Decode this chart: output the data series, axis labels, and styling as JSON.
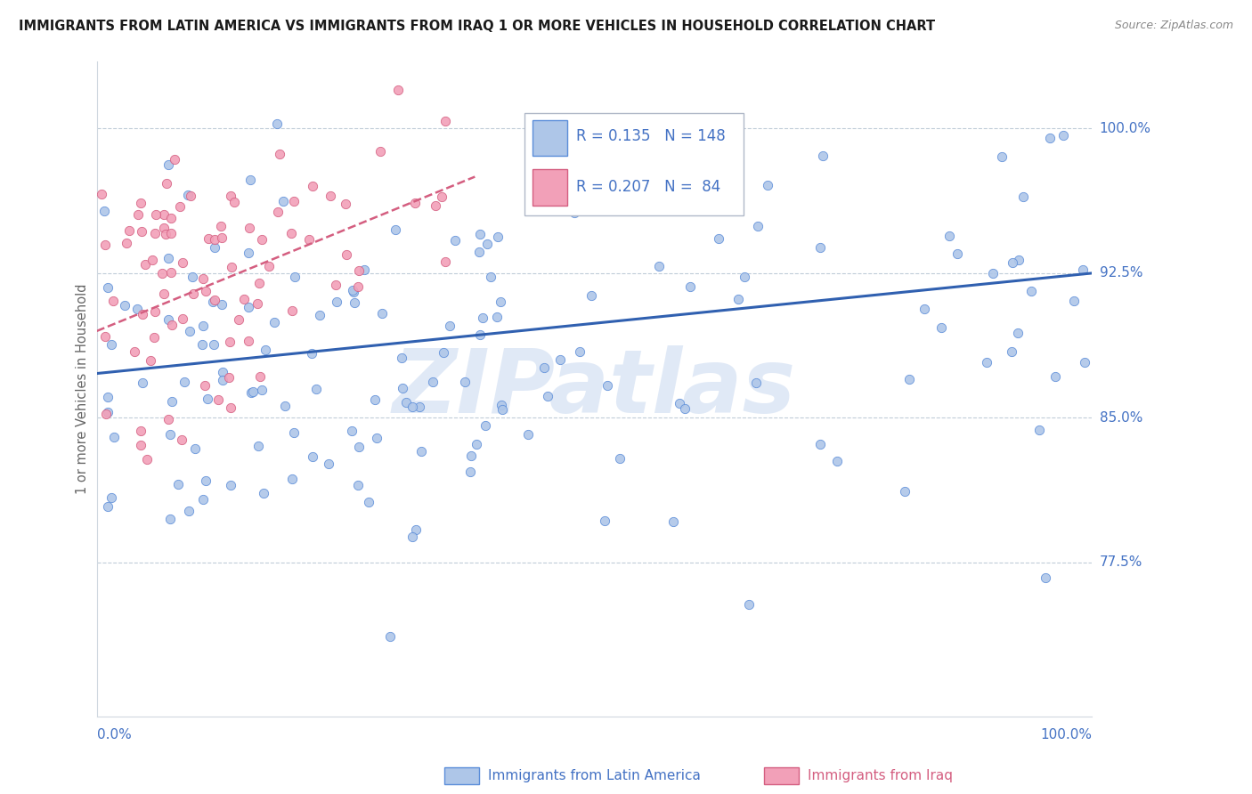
{
  "title": "IMMIGRANTS FROM LATIN AMERICA VS IMMIGRANTS FROM IRAQ 1 OR MORE VEHICLES IN HOUSEHOLD CORRELATION CHART",
  "source": "Source: ZipAtlas.com",
  "ylabel": "1 or more Vehicles in Household",
  "x_min": 0.0,
  "x_max": 1.0,
  "y_min": 0.695,
  "y_max": 1.035,
  "y_ticks": [
    0.775,
    0.85,
    0.925,
    1.0
  ],
  "y_tick_labels": [
    "77.5%",
    "85.0%",
    "92.5%",
    "100.0%"
  ],
  "legend_blue_R": "0.135",
  "legend_blue_N": "148",
  "legend_pink_R": "0.207",
  "legend_pink_N": "84",
  "blue_fill": "#aec6e8",
  "blue_edge": "#5b8dd9",
  "pink_fill": "#f2a0b8",
  "pink_edge": "#d45e80",
  "blue_trend_color": "#3060b0",
  "pink_trend_color": "#d45e80",
  "text_color": "#4472c4",
  "grid_color": "#c0ccd8",
  "watermark": "ZIPatlas",
  "watermark_color": "#c8d8f0",
  "blue_trend_x0": 0.0,
  "blue_trend_y0": 0.873,
  "blue_trend_x1": 1.0,
  "blue_trend_y1": 0.925,
  "pink_trend_x0": 0.0,
  "pink_trend_y0": 0.895,
  "pink_trend_x1": 0.38,
  "pink_trend_y1": 0.975
}
